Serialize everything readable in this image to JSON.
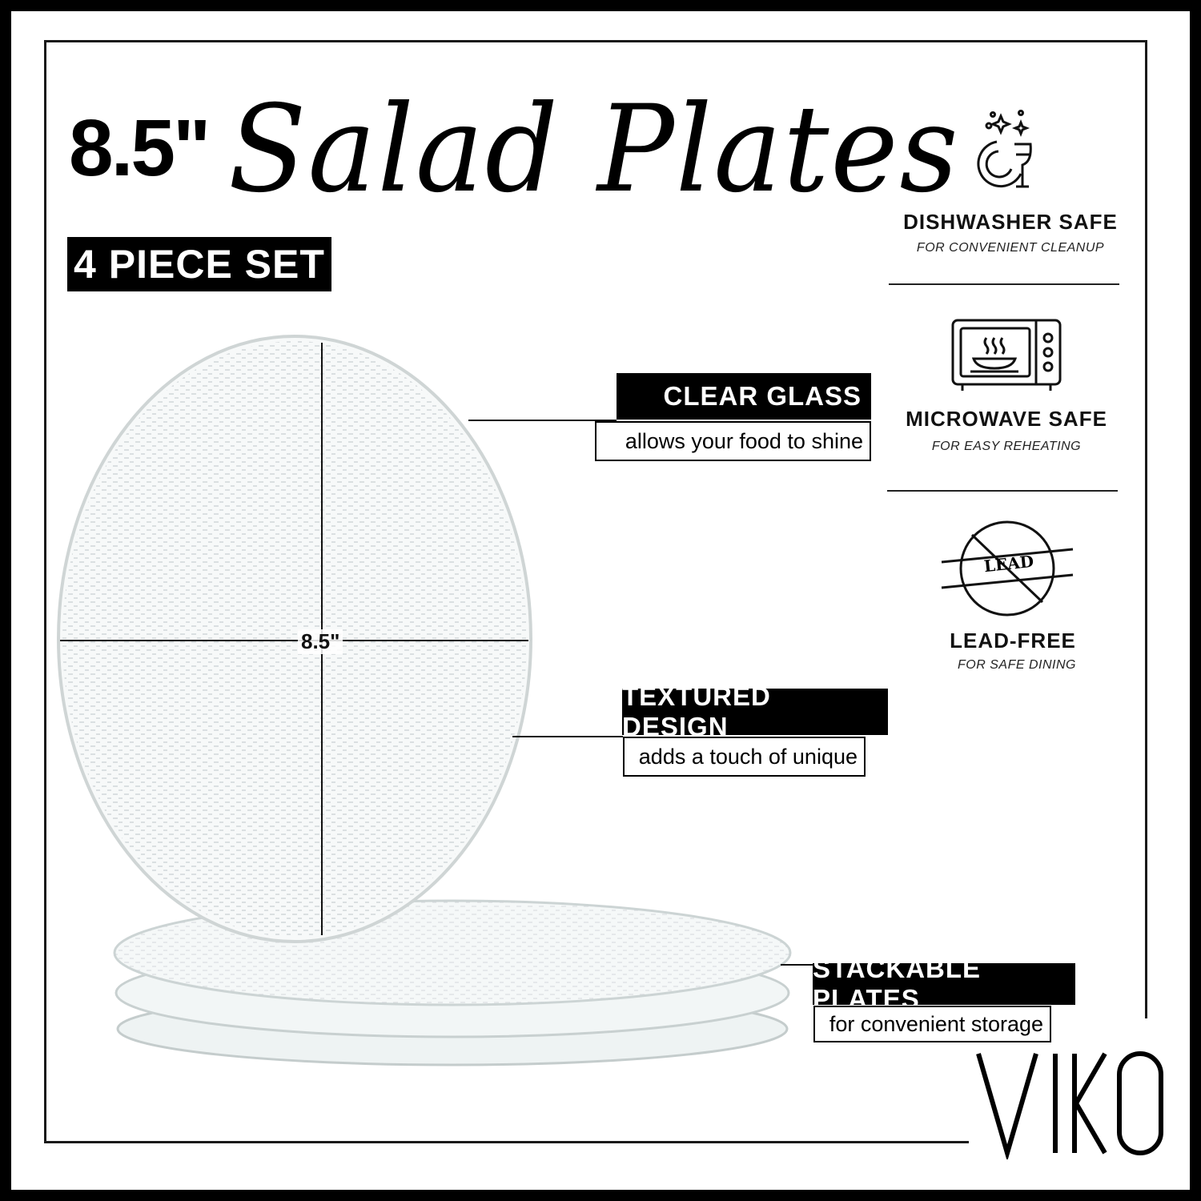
{
  "header": {
    "size": "8.5\"",
    "script_title": "Salad Plates",
    "set_badge": "4 PIECE SET"
  },
  "plate": {
    "measurement": "8.5\""
  },
  "callouts": [
    {
      "title": "CLEAR GLASS",
      "subtitle": "allows your food to shine"
    },
    {
      "title": "TEXTURED DESIGN",
      "subtitle": "adds a touch of unique"
    },
    {
      "title": "STACKABLE PLATES",
      "subtitle": "for convenient storage"
    }
  ],
  "features": [
    {
      "icon": "dishwasher-icon",
      "title": "DISHWASHER SAFE",
      "subtitle": "FOR CONVENIENT CLEANUP"
    },
    {
      "icon": "microwave-icon",
      "title": "MICROWAVE SAFE",
      "subtitle": "FOR EASY REHEATING"
    },
    {
      "icon": "lead-free-icon",
      "title": "LEAD-FREE",
      "subtitle": "FOR SAFE DINING",
      "icon_text": "LEAD"
    }
  ],
  "brand": {
    "logo": "VIKO"
  }
}
